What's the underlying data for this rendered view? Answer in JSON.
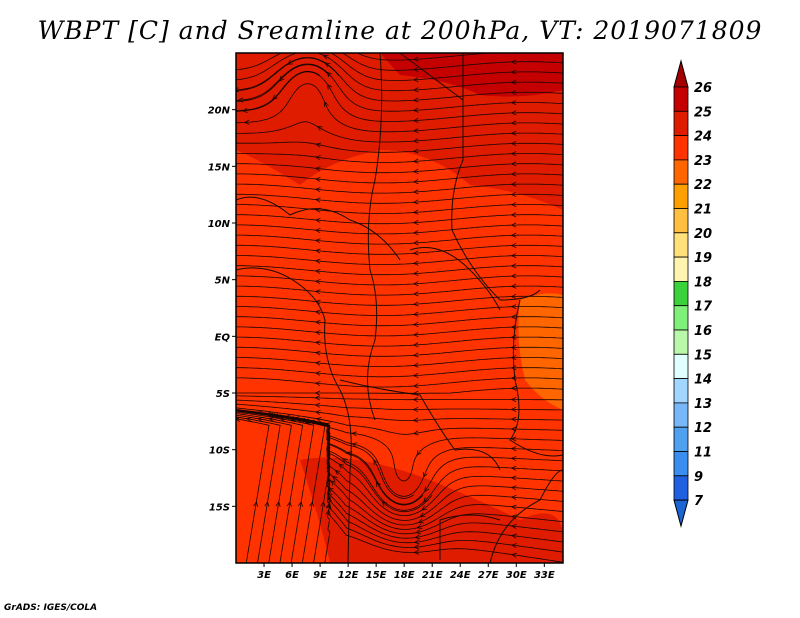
{
  "title": "WBPT [C] and Sreamline at 200hPa, VT: 2019071809",
  "credit": "GrADS: IGES/COLA",
  "chart_data": {
    "type": "heatmap",
    "title": "WBPT [C] and Sreamline at 200hPa, VT: 2019071809",
    "variable": "Wet-bulb potential temperature (C) with 200hPa streamlines",
    "lon_range": [
      0,
      35
    ],
    "lat_range": [
      -20,
      25
    ],
    "x_ticks": [
      "3E",
      "6E",
      "9E",
      "12E",
      "15E",
      "18E",
      "21E",
      "24E",
      "27E",
      "30E",
      "33E"
    ],
    "x_tick_values": [
      3,
      6,
      9,
      12,
      15,
      18,
      21,
      24,
      27,
      30,
      33
    ],
    "y_ticks": [
      "20N",
      "15N",
      "10N",
      "5N",
      "EQ",
      "5S",
      "10S",
      "15S"
    ],
    "y_tick_values": [
      20,
      15,
      10,
      5,
      0,
      -5,
      -10,
      -15
    ],
    "colorbar": {
      "labels": [
        "26",
        "25",
        "24",
        "23",
        "22",
        "21",
        "20",
        "19",
        "18",
        "17",
        "16",
        "15",
        "14",
        "13",
        "12",
        "11",
        "9",
        "7"
      ],
      "colors": [
        "#a40000",
        "#c40000",
        "#e01c00",
        "#ff3300",
        "#ff6600",
        "#ffa000",
        "#ffbf40",
        "#ffe07a",
        "#fff5b0",
        "#3cd23c",
        "#7ff07a",
        "#b9f8a8",
        "#e0ffff",
        "#a0d6ff",
        "#78b8f8",
        "#50a0f0",
        "#3a8ef0",
        "#2060e0",
        "#1a64d4"
      ]
    },
    "dominant_range": "23-25 C",
    "features": [
      "cyclonic eddy near 5E 23N",
      "anticyclonic eddy near 17E 15S",
      "easterly flow across equatorial Africa",
      "warmer 22 C region near 30-35E EQ"
    ]
  }
}
